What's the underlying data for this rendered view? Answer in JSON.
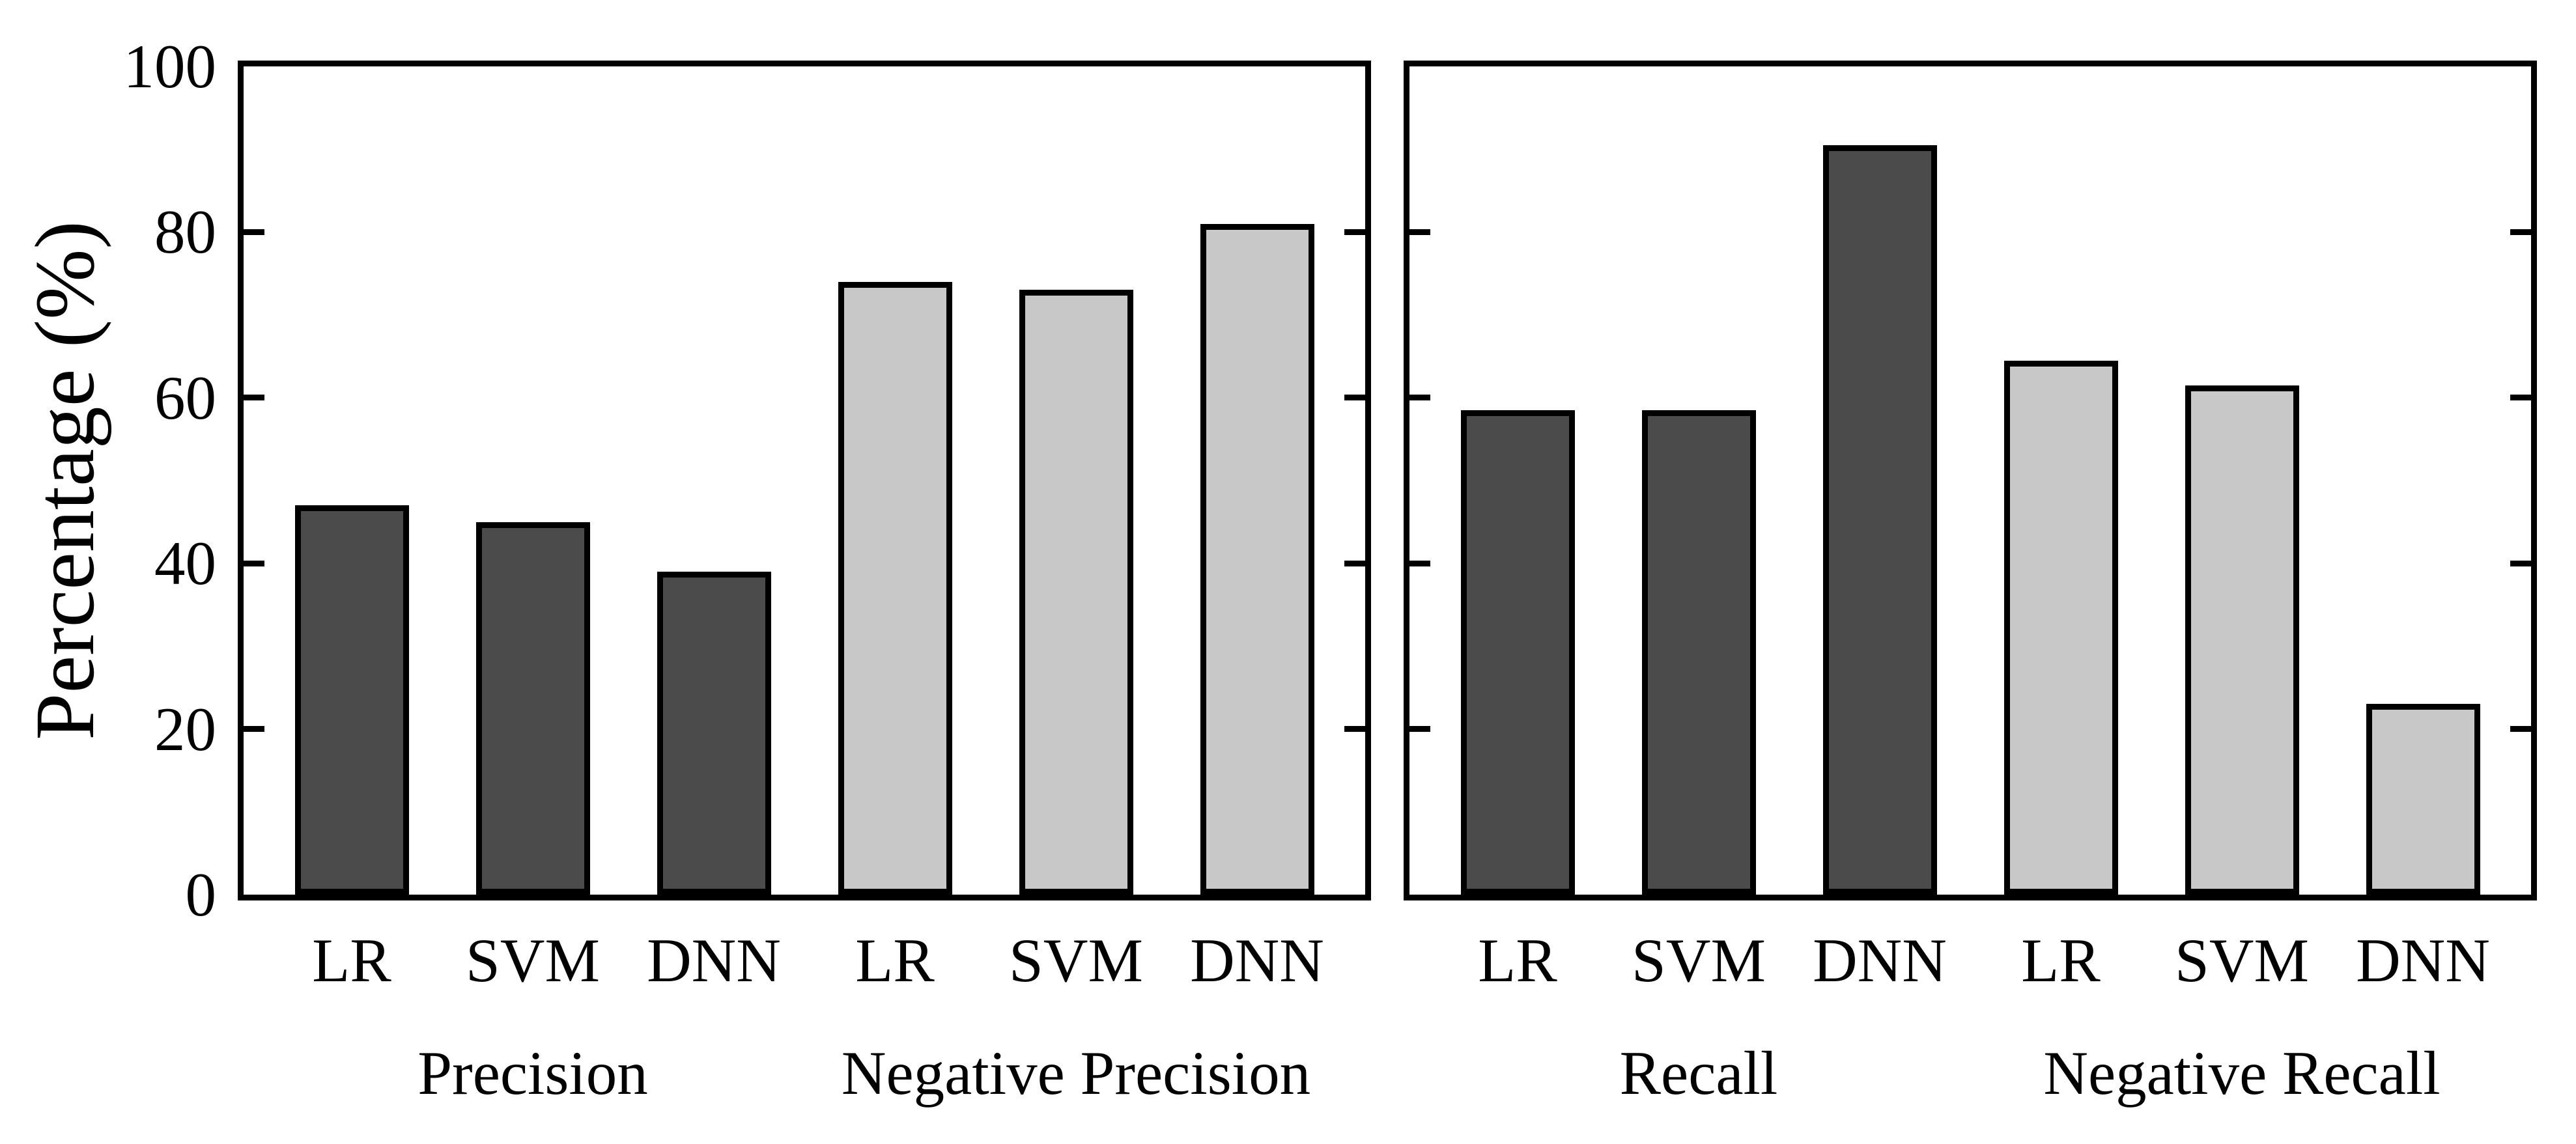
{
  "figure": {
    "background": "#ffffff",
    "axis_color": "#000000",
    "ylabel": "Percentage (%)",
    "yticks": [
      0,
      20,
      40,
      60,
      80,
      100
    ],
    "ylim": [
      0,
      100
    ]
  },
  "colors": {
    "dark_bar": "#4b4b4b",
    "light_bar": "#c8c8c8",
    "bar_edge": "#000000",
    "text": "#000000"
  },
  "chart_data": [
    {
      "type": "bar",
      "title": "",
      "xlabel": "",
      "ylabel": "Percentage (%)",
      "ylim": [
        0,
        100
      ],
      "yticks": [
        0,
        20,
        40,
        60,
        80,
        100
      ],
      "grid": false,
      "legend": "none",
      "groups": [
        {
          "label": "Precision",
          "color": "#4b4b4b",
          "categories": [
            "LR",
            "SVM",
            "DNN"
          ],
          "values": [
            47,
            45,
            39
          ]
        },
        {
          "label": "Negative Precision",
          "color": "#c8c8c8",
          "categories": [
            "LR",
            "SVM",
            "DNN"
          ],
          "values": [
            74,
            73,
            81
          ]
        }
      ]
    },
    {
      "type": "bar",
      "title": "",
      "xlabel": "",
      "ylabel": "",
      "ylim": [
        0,
        100
      ],
      "yticks": [
        0,
        20,
        40,
        60,
        80,
        100
      ],
      "grid": false,
      "legend": "none",
      "groups": [
        {
          "label": "Recall",
          "color": "#4b4b4b",
          "categories": [
            "LR",
            "SVM",
            "DNN"
          ],
          "values": [
            58.5,
            58.5,
            90.5
          ]
        },
        {
          "label": "Negative Recall",
          "color": "#c8c8c8",
          "categories": [
            "LR",
            "SVM",
            "DNN"
          ],
          "values": [
            64.5,
            61.5,
            23
          ]
        }
      ]
    }
  ]
}
